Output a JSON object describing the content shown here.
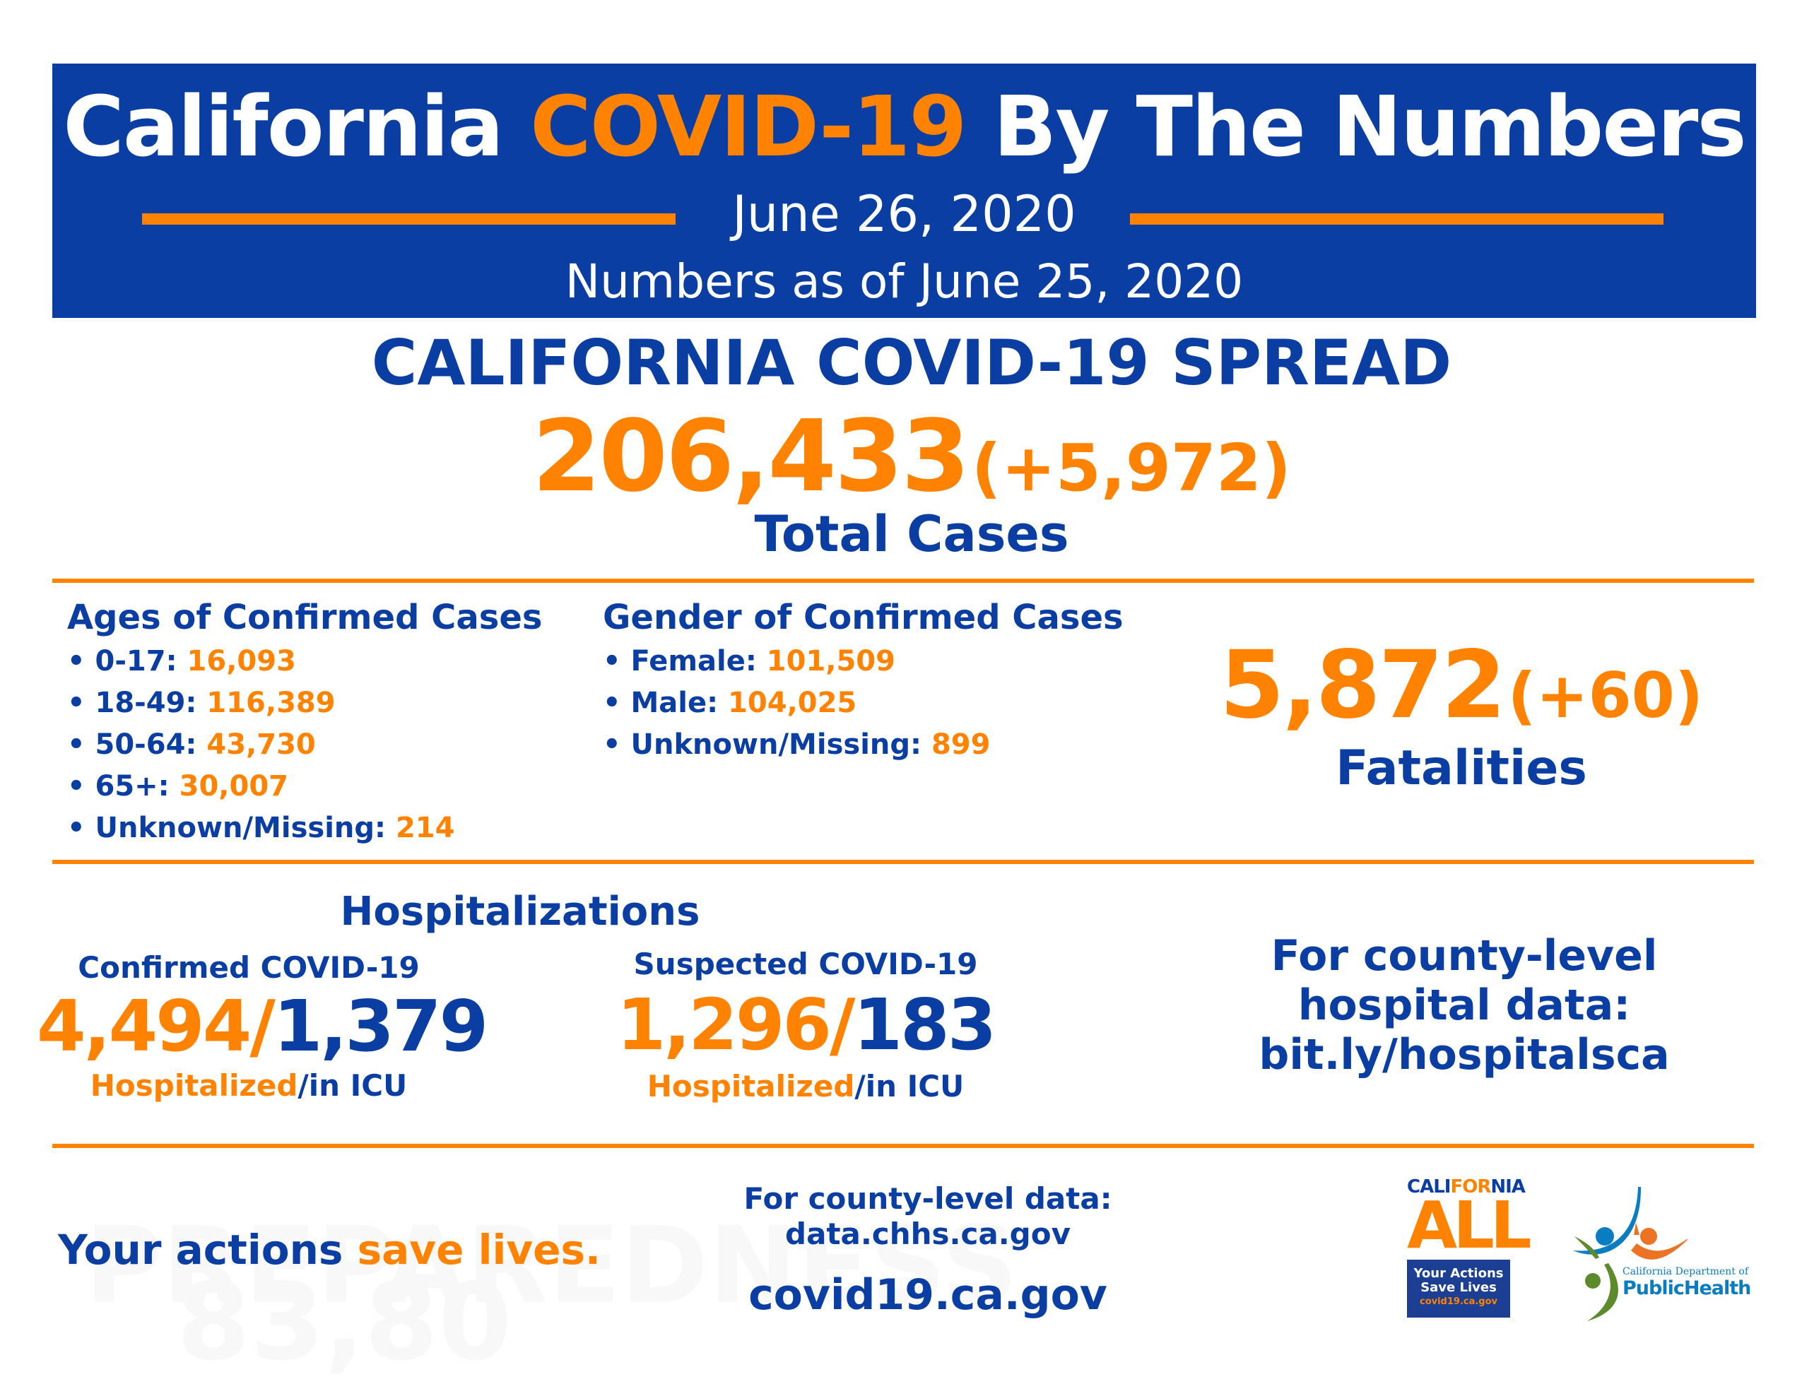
{
  "header": {
    "title_part1": "California",
    "title_part2": "COVID-19",
    "title_part3": "By The Numbers",
    "date": "June 26, 2020",
    "as_of": "Numbers as of June 25, 2020"
  },
  "spread": {
    "heading": "CALIFORNIA COVID-19 SPREAD",
    "total_cases": "206,433",
    "new_cases": "(+5,972)",
    "label": "Total Cases"
  },
  "ages": {
    "heading": "Ages of Confirmed Cases",
    "items": [
      {
        "label": "0-17:",
        "value": "16,093"
      },
      {
        "label": "18-49:",
        "value": "116,389"
      },
      {
        "label": "50-64:",
        "value": "43,730"
      },
      {
        "label": "65+:",
        "value": "30,007"
      },
      {
        "label": "Unknown/Missing:",
        "value": "214"
      }
    ]
  },
  "gender": {
    "heading": "Gender of Confirmed Cases",
    "items": [
      {
        "label": "Female:",
        "value": "101,509"
      },
      {
        "label": "Male:",
        "value": "104,025"
      },
      {
        "label": "Unknown/Missing:",
        "value": "899"
      }
    ]
  },
  "fatalities": {
    "total": "5,872",
    "new": "(+60)",
    "label": "Fatalities"
  },
  "hospitalizations": {
    "heading": "Hospitalizations",
    "confirmed": {
      "label": "Confirmed COVID-19",
      "hospitalized": "4,494",
      "icu": "1,379",
      "hospitalized_label": "Hospitalized",
      "icu_label": "/in ICU"
    },
    "suspected": {
      "label": "Suspected COVID-19",
      "hospitalized": "1,296",
      "icu": "183",
      "hospitalized_label": "Hospitalized",
      "icu_label": "/in ICU"
    },
    "county_link": {
      "line1": "For county-level",
      "line2": "hospital data:",
      "line3": "bit.ly/hospitalsca"
    }
  },
  "footer": {
    "slogan_part1": "Your actions",
    "slogan_part2": "save lives.",
    "watermark_top": "PREPAREDNESS",
    "watermark_bottom": "83,80",
    "county_data_label": "For county-level data:",
    "county_data_url": "data.chhs.ca.gov",
    "site": "covid19.ca.gov",
    "ca_all_logo": {
      "cali": "CALI",
      "for": "FOR",
      "nia": "NIA",
      "all": "ALL",
      "line1": "Your Actions",
      "line2": "Save Lives",
      "url": "covid19.ca.gov"
    },
    "cdph_logo": {
      "line1": "California Department of",
      "line2": "PublicHealth"
    }
  },
  "colors": {
    "blue": "#0a3ea3",
    "orange": "#ff8300"
  }
}
